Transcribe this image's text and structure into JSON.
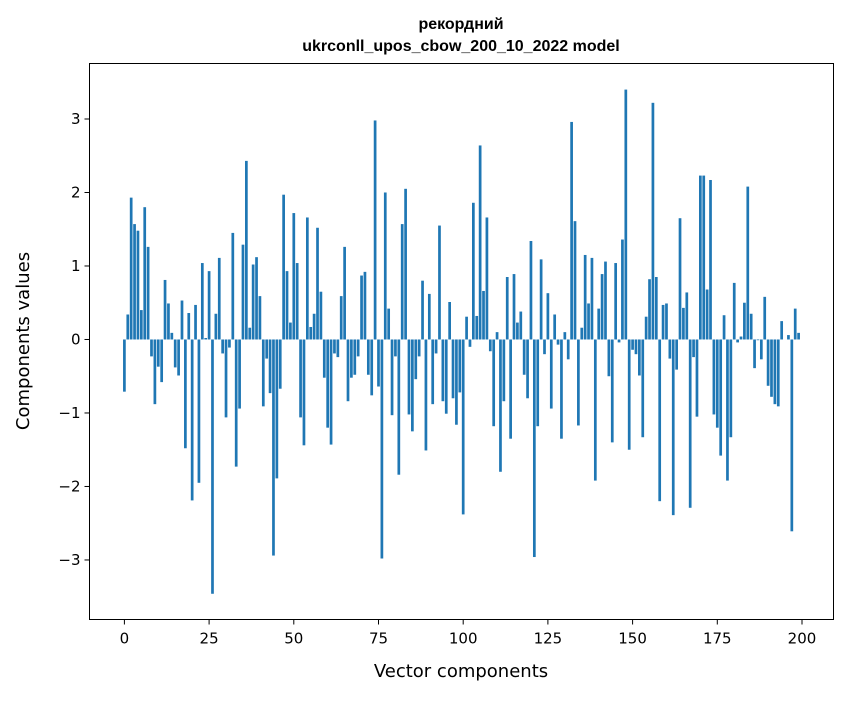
{
  "chart_data": {
    "type": "bar",
    "title_line1": "рекордний",
    "title_line2": "ukrconll_upos_cbow_200_10_2022 model",
    "xlabel": "Vector components",
    "ylabel": "Components values",
    "xlim": [
      -10.3,
      209.3
    ],
    "ylim": [
      -3.81,
      3.755
    ],
    "xticks": [
      0,
      25,
      50,
      75,
      100,
      125,
      150,
      175,
      200
    ],
    "yticks": [
      -3,
      -2,
      -1,
      0,
      1,
      2,
      3
    ],
    "ytick_labels": [
      "−3",
      "−2",
      "−1",
      "0",
      "1",
      "2",
      "3"
    ],
    "grid": false,
    "bar_color": "#1f77b4",
    "values": [
      -0.71,
      0.34,
      1.93,
      1.57,
      1.48,
      0.4,
      1.8,
      1.26,
      -0.23,
      -0.88,
      -0.37,
      -0.58,
      0.81,
      0.49,
      0.09,
      -0.38,
      -0.49,
      0.53,
      -1.48,
      0.36,
      -2.19,
      0.47,
      -1.95,
      1.04,
      0.02,
      0.93,
      -3.46,
      0.35,
      1.11,
      -0.19,
      -1.06,
      -0.11,
      1.45,
      -1.73,
      -0.94,
      1.29,
      2.43,
      0.16,
      1.02,
      1.12,
      0.59,
      -0.91,
      -0.26,
      -0.73,
      -2.94,
      -1.89,
      -0.67,
      1.97,
      0.93,
      0.23,
      1.72,
      1.04,
      -1.06,
      -1.44,
      1.66,
      0.17,
      0.35,
      1.52,
      0.65,
      -0.52,
      -1.2,
      -1.43,
      -0.19,
      -0.24,
      0.59,
      1.26,
      -0.84,
      -0.52,
      -0.48,
      -0.23,
      0.87,
      0.92,
      -0.48,
      -0.76,
      2.98,
      -0.64,
      -2.98,
      2.0,
      0.42,
      -1.03,
      -0.23,
      -1.84,
      1.57,
      2.05,
      -1.02,
      -1.25,
      -0.54,
      -0.23,
      0.8,
      -1.51,
      0.62,
      -0.88,
      -0.19,
      1.55,
      -0.84,
      -1.01,
      0.51,
      -0.8,
      -1.16,
      -0.72,
      -2.38,
      0.31,
      -0.1,
      1.86,
      0.32,
      2.64,
      0.66,
      1.66,
      -0.16,
      -1.18,
      0.1,
      -1.8,
      -0.84,
      0.85,
      -1.35,
      0.89,
      0.23,
      0.38,
      -0.48,
      -0.8,
      1.34,
      -2.96,
      -1.18,
      1.09,
      -0.2,
      0.63,
      -0.94,
      0.34,
      -0.07,
      -1.35,
      0.1,
      -0.27,
      2.96,
      1.61,
      -1.17,
      0.16,
      1.15,
      0.49,
      1.11,
      -1.92,
      0.42,
      0.89,
      1.06,
      -0.5,
      -1.4,
      1.04,
      -0.04,
      1.36,
      3.4,
      -1.5,
      -0.14,
      -0.2,
      -0.49,
      -1.33,
      0.31,
      0.82,
      3.22,
      0.85,
      -2.2,
      0.47,
      0.49,
      -0.26,
      -2.39,
      -0.41,
      1.65,
      0.43,
      0.64,
      -2.29,
      -0.24,
      -1.05,
      2.23,
      2.23,
      0.68,
      2.17,
      -1.02,
      -1.2,
      -1.58,
      0.33,
      -1.92,
      -1.33,
      0.77,
      -0.04,
      0.04,
      0.5,
      2.08,
      0.35,
      -0.39,
      -0.01,
      -0.27,
      0.58,
      -0.63,
      -0.78,
      -0.88,
      -0.91,
      0.25,
      0.0,
      0.06,
      -2.61,
      0.42,
      0.09
    ]
  }
}
